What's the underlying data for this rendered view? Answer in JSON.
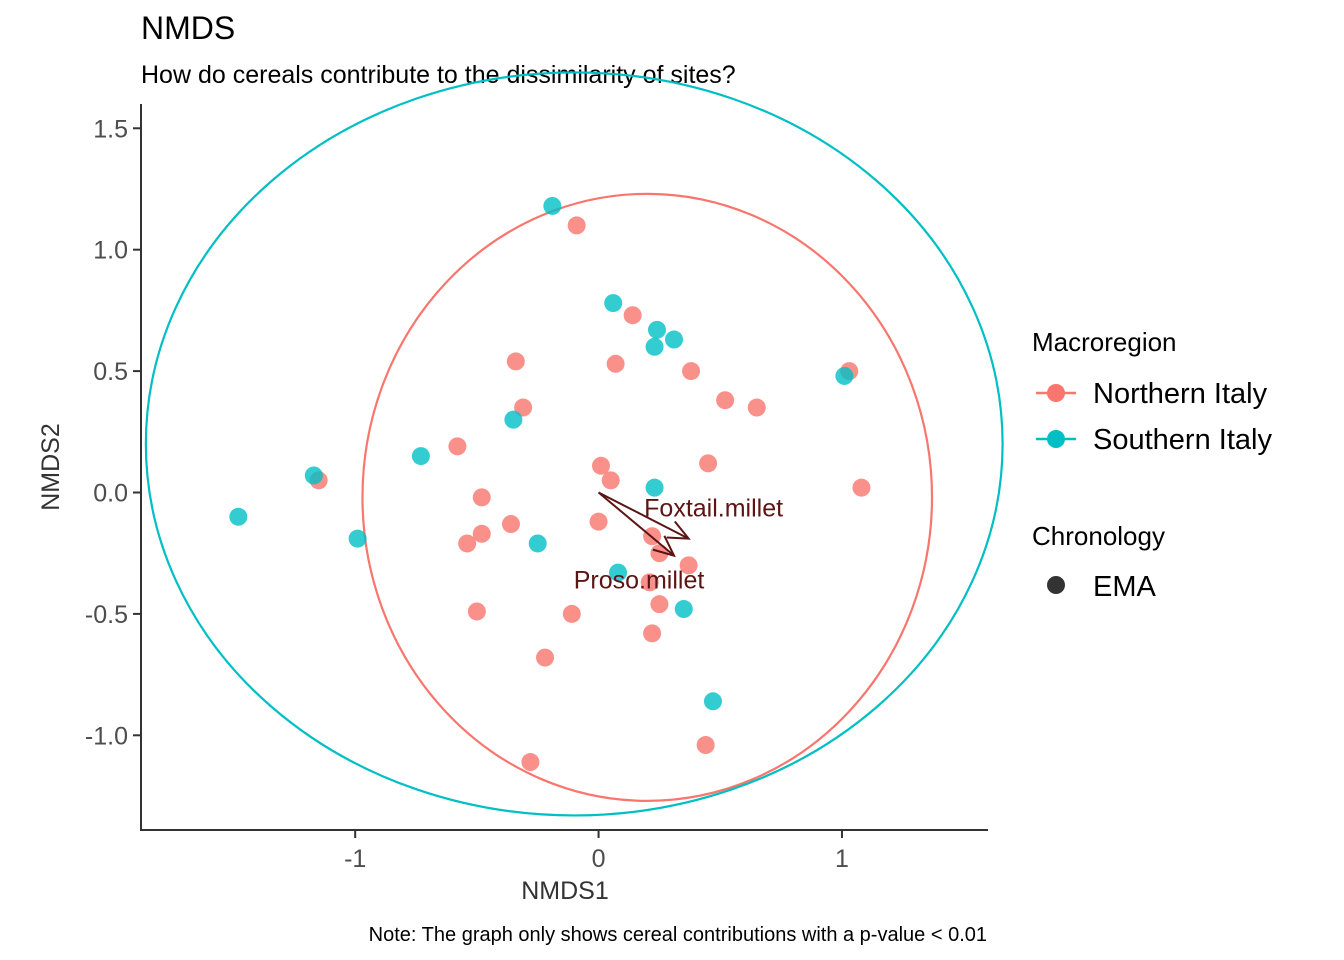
{
  "chart_data": {
    "type": "scatter",
    "title": "NMDS",
    "subtitle": "How do cereals contribute to the dissimilarity of sites?",
    "caption": "Note: The graph only shows cereal contributions with a p-value < 0.01",
    "xlabel": "NMDS1",
    "ylabel": "NMDS2",
    "xlim": [
      -1.88,
      1.6
    ],
    "ylim": [
      -1.39,
      1.6
    ],
    "xticks": [
      -1,
      0,
      1
    ],
    "xtick_labels": [
      "-1",
      "0",
      "1"
    ],
    "yticks": [
      1.5,
      1.0,
      0.5,
      0.0,
      -0.5,
      -1.0
    ],
    "ytick_labels": [
      "1.5",
      "1.0",
      "0.5",
      "0.0",
      "-0.5",
      "-1.0"
    ],
    "grid": false,
    "legend_position": "right",
    "legends": [
      {
        "title": "Macroregion",
        "entries": [
          "Northern Italy",
          "Southern Italy"
        ]
      },
      {
        "title": "Chronology",
        "entries": [
          "EMA"
        ]
      }
    ],
    "colors": {
      "Northern Italy": "#f8766d",
      "Southern Italy": "#00bfc4",
      "vector": "#5c1414",
      "EMA": "#333333"
    },
    "series": [
      {
        "name": "Northern Italy",
        "chronology": "EMA",
        "x": [
          -0.09,
          0.14,
          -0.34,
          0.07,
          0.38,
          -0.31,
          0.52,
          0.65,
          1.03,
          0.01,
          0.05,
          0.45,
          -0.58,
          -0.48,
          -1.15,
          1.08,
          -0.48,
          -0.36,
          0.0,
          -0.54,
          0.22,
          0.25,
          0.37,
          0.21,
          0.25,
          -0.5,
          -0.11,
          0.22,
          -0.22,
          0.44,
          -0.28
        ],
        "y": [
          1.1,
          0.73,
          0.54,
          0.53,
          0.5,
          0.35,
          0.38,
          0.35,
          0.5,
          0.11,
          0.05,
          0.12,
          0.19,
          -0.02,
          0.05,
          0.02,
          -0.17,
          -0.13,
          -0.12,
          -0.21,
          -0.18,
          -0.25,
          -0.3,
          -0.37,
          -0.46,
          -0.49,
          -0.5,
          -0.58,
          -0.68,
          -1.04,
          -1.11
        ]
      },
      {
        "name": "Southern Italy",
        "chronology": "EMA",
        "x": [
          -0.19,
          0.06,
          0.24,
          0.31,
          0.23,
          -0.35,
          1.01,
          -0.73,
          -1.17,
          -1.48,
          -0.99,
          -0.25,
          0.23,
          0.08,
          0.35,
          0.47
        ],
        "y": [
          1.18,
          0.78,
          0.67,
          0.63,
          0.6,
          0.3,
          0.48,
          0.15,
          0.07,
          -0.1,
          -0.19,
          -0.21,
          0.02,
          -0.33,
          -0.48,
          -0.86
        ]
      }
    ],
    "ellipses": [
      {
        "name": "Northern Italy",
        "center": [
          0.2,
          -0.02
        ],
        "rx": 1.17,
        "ry": 1.25
      },
      {
        "name": "Southern Italy",
        "center": [
          -0.1,
          0.2
        ],
        "rx": 1.76,
        "ry": 1.53
      }
    ],
    "vectors": [
      {
        "label": "Foxtail.millet",
        "x": 0.37,
        "y": -0.19
      },
      {
        "label": "Proso.millet",
        "x": 0.31,
        "y": -0.26
      }
    ]
  }
}
